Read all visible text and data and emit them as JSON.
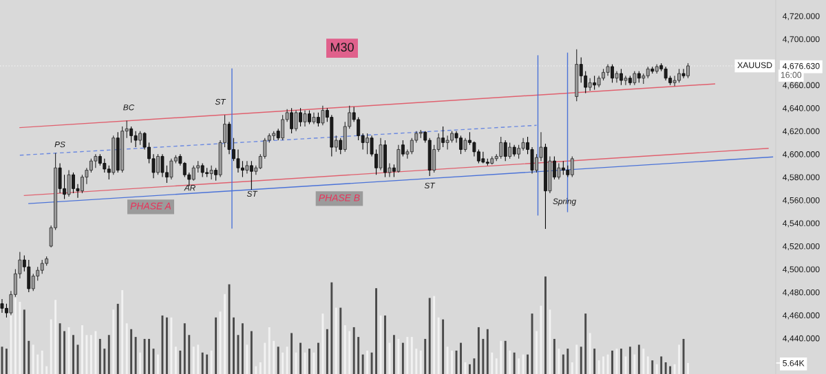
{
  "chart_data": {
    "type": "candlestick",
    "title": "M30",
    "categories": [
      null,
      null,
      null,
      null,
      null,
      null,
      null,
      null,
      null,
      null,
      null,
      null,
      null,
      null,
      null,
      null,
      null,
      null,
      null,
      null,
      null,
      null,
      null,
      null,
      null,
      null,
      null,
      null,
      null,
      null,
      null,
      null,
      null,
      null,
      null,
      null,
      null,
      null,
      null,
      null,
      null,
      null,
      null,
      null,
      null,
      null,
      null,
      null,
      null,
      null,
      null,
      null,
      null,
      null,
      null,
      null,
      null,
      null,
      null,
      null,
      null,
      null,
      null,
      null,
      null,
      null,
      null,
      null,
      null,
      null,
      null,
      null,
      null,
      null,
      null,
      null,
      null,
      null,
      null,
      null,
      null,
      null,
      null,
      null,
      null,
      null,
      null,
      null,
      null,
      null,
      null,
      null,
      null,
      null,
      null,
      null,
      null,
      null,
      null,
      null,
      null,
      null,
      null,
      null,
      null,
      null,
      null,
      null,
      null,
      null,
      null,
      null,
      null,
      null,
      null,
      null,
      null,
      null,
      null,
      null,
      null,
      null,
      null,
      null,
      null,
      null,
      null,
      null,
      null,
      null,
      null,
      null,
      null,
      null,
      null,
      null,
      null,
      null,
      null,
      null,
      null,
      null,
      null,
      null,
      null,
      null,
      null,
      null,
      null,
      null,
      null,
      null,
      null,
      null,
      null,
      null,
      null,
      null,
      null,
      null,
      null,
      null,
      null,
      null,
      null,
      null,
      null,
      null,
      null,
      null,
      null,
      null,
      null,
      null
    ],
    "ohlc": [
      [
        4470,
        4474,
        4462,
        4466
      ],
      [
        4466,
        4470,
        4458,
        4462
      ],
      [
        4462,
        4481,
        4460,
        4478
      ],
      [
        4478,
        4500,
        4476,
        4496
      ],
      [
        4496,
        4515,
        4492,
        4508
      ],
      [
        4508,
        4512,
        4498,
        4502
      ],
      [
        4502,
        4508,
        4480,
        4483
      ],
      [
        4483,
        4496,
        4481,
        4494
      ],
      [
        4494,
        4502,
        4490,
        4499
      ],
      [
        4499,
        4508,
        4496,
        4505
      ],
      [
        4505,
        4511,
        4503,
        4509
      ],
      [
        4520,
        4538,
        4519,
        4536
      ],
      [
        4536,
        4601,
        4534,
        4588
      ],
      [
        4588,
        4592,
        4566,
        4570
      ],
      [
        4570,
        4582,
        4561,
        4565
      ],
      [
        4565,
        4586,
        4563,
        4582
      ],
      [
        4582,
        4584,
        4566,
        4570
      ],
      [
        4570,
        4574,
        4562,
        4568
      ],
      [
        4568,
        4582,
        4566,
        4580
      ],
      [
        4580,
        4588,
        4574,
        4586
      ],
      [
        4586,
        4596,
        4584,
        4594
      ],
      [
        4594,
        4600,
        4588,
        4598
      ],
      [
        4598,
        4600,
        4590,
        4592
      ],
      [
        4592,
        4596,
        4584,
        4587
      ],
      [
        4587,
        4590,
        4578,
        4584
      ],
      [
        4584,
        4616,
        4582,
        4614
      ],
      [
        4614,
        4619,
        4584,
        4586
      ],
      [
        4586,
        4624,
        4584,
        4620
      ],
      [
        4620,
        4629,
        4614,
        4622
      ],
      [
        4622,
        4624,
        4610,
        4616
      ],
      [
        4616,
        4620,
        4606,
        4612
      ],
      [
        4612,
        4620,
        4608,
        4618
      ],
      [
        4618,
        4619,
        4604,
        4606
      ],
      [
        4606,
        4610,
        4592,
        4596
      ],
      [
        4596,
        4600,
        4579,
        4584
      ],
      [
        4584,
        4600,
        4582,
        4598
      ],
      [
        4598,
        4600,
        4580,
        4584
      ],
      [
        4584,
        4590,
        4575,
        4580
      ],
      [
        4580,
        4596,
        4578,
        4594
      ],
      [
        4594,
        4599,
        4592,
        4597
      ],
      [
        4598,
        4600,
        4590,
        4592
      ],
      [
        4592,
        4593,
        4580,
        4582
      ],
      [
        4582,
        4584,
        4572,
        4578
      ],
      [
        4578,
        4590,
        4577,
        4588
      ],
      [
        4588,
        4594,
        4584,
        4590
      ],
      [
        4590,
        4592,
        4580,
        4584
      ],
      [
        4584,
        4588,
        4580,
        4583
      ],
      [
        4583,
        4590,
        4578,
        4586
      ],
      [
        4586,
        4588,
        4577,
        4582
      ],
      [
        4582,
        4612,
        4580,
        4610
      ],
      [
        4610,
        4634,
        4606,
        4626
      ],
      [
        4626,
        4628,
        4600,
        4604
      ],
      [
        4604,
        4614,
        4594,
        4596
      ],
      [
        4596,
        4604,
        4584,
        4588
      ],
      [
        4588,
        4594,
        4580,
        4586
      ],
      [
        4586,
        4594,
        4583,
        4590
      ],
      [
        4590,
        4594,
        4569,
        4585
      ],
      [
        4585,
        4590,
        4582,
        4588
      ],
      [
        4588,
        4600,
        4587,
        4598
      ],
      [
        4598,
        4614,
        4596,
        4612
      ],
      [
        4612,
        4618,
        4610,
        4616
      ],
      [
        4616,
        4620,
        4612,
        4618
      ],
      [
        4620,
        4622,
        4612,
        4614
      ],
      [
        4614,
        4634,
        4612,
        4630
      ],
      [
        4630,
        4639,
        4628,
        4636
      ],
      [
        4636,
        4640,
        4618,
        4622
      ],
      [
        4622,
        4638,
        4620,
        4636
      ],
      [
        4636,
        4640,
        4624,
        4628
      ],
      [
        4628,
        4638,
        4624,
        4635
      ],
      [
        4635,
        4638,
        4626,
        4628
      ],
      [
        4628,
        4636,
        4626,
        4632
      ],
      [
        4632,
        4636,
        4624,
        4627
      ],
      [
        4627,
        4642,
        4625,
        4638
      ],
      [
        4638,
        4640,
        4628,
        4632
      ],
      [
        4632,
        4634,
        4598,
        4606
      ],
      [
        4606,
        4616,
        4602,
        4612
      ],
      [
        4612,
        4614,
        4600,
        4604
      ],
      [
        4604,
        4628,
        4602,
        4624
      ],
      [
        4624,
        4642,
        4622,
        4636
      ],
      [
        4636,
        4641,
        4628,
        4630
      ],
      [
        4630,
        4632,
        4612,
        4616
      ],
      [
        4616,
        4618,
        4604,
        4610
      ],
      [
        4610,
        4618,
        4600,
        4614
      ],
      [
        4614,
        4616,
        4598,
        4600
      ],
      [
        4600,
        4604,
        4582,
        4588
      ],
      [
        4588,
        4614,
        4586,
        4608
      ],
      [
        4608,
        4612,
        4580,
        4584
      ],
      [
        4584,
        4592,
        4580,
        4588
      ],
      [
        4588,
        4591,
        4580,
        4585
      ],
      [
        4585,
        4608,
        4584,
        4604
      ],
      [
        4608,
        4612,
        4598,
        4600
      ],
      [
        4600,
        4604,
        4596,
        4602
      ],
      [
        4602,
        4614,
        4600,
        4612
      ],
      [
        4612,
        4620,
        4610,
        4618
      ],
      [
        4618,
        4621,
        4614,
        4619
      ],
      [
        4619,
        4620,
        4610,
        4612
      ],
      [
        4612,
        4614,
        4581,
        4586
      ],
      [
        4586,
        4608,
        4584,
        4604
      ],
      [
        4604,
        4618,
        4602,
        4614
      ],
      [
        4614,
        4624,
        4606,
        4610
      ],
      [
        4610,
        4616,
        4604,
        4612
      ],
      [
        4612,
        4620,
        4610,
        4618
      ],
      [
        4618,
        4620,
        4610,
        4614
      ],
      [
        4614,
        4616,
        4600,
        4604
      ],
      [
        4604,
        4614,
        4602,
        4612
      ],
      [
        4612,
        4619,
        4608,
        4610
      ],
      [
        4610,
        4611,
        4598,
        4602
      ],
      [
        4602,
        4604,
        4592,
        4594
      ],
      [
        4596,
        4602,
        4592,
        4593
      ],
      [
        4593,
        4596,
        4590,
        4592
      ],
      [
        4592,
        4598,
        4591,
        4596
      ],
      [
        4596,
        4600,
        4594,
        4598
      ],
      [
        4598,
        4615,
        4596,
        4610
      ],
      [
        4610,
        4612,
        4594,
        4598
      ],
      [
        4598,
        4610,
        4596,
        4606
      ],
      [
        4606,
        4608,
        4598,
        4600
      ],
      [
        4600,
        4608,
        4596,
        4605
      ],
      [
        4605,
        4614,
        4603,
        4610
      ],
      [
        4610,
        4615,
        4600,
        4604
      ],
      [
        4604,
        4606,
        4583,
        4586
      ],
      [
        4586,
        4600,
        4584,
        4597
      ],
      [
        4597,
        4619,
        4594,
        4606
      ],
      [
        4606,
        4609,
        4535,
        4568
      ],
      [
        4568,
        4598,
        4566,
        4594
      ],
      [
        4594,
        4598,
        4578,
        4580
      ],
      [
        4580,
        4592,
        4578,
        4588
      ],
      [
        4588,
        4594,
        4582,
        4586
      ],
      [
        4586,
        4590,
        4580,
        4582
      ],
      [
        4582,
        4598,
        4580,
        4596
      ],
      [
        4650,
        4691,
        4646,
        4678
      ],
      [
        4678,
        4684,
        4662,
        4668
      ],
      [
        4668,
        4672,
        4653,
        4658
      ],
      [
        4658,
        4666,
        4655,
        4662
      ],
      [
        4662,
        4668,
        4656,
        4660
      ],
      [
        4660,
        4668,
        4658,
        4666
      ],
      [
        4666,
        4674,
        4664,
        4671
      ],
      [
        4671,
        4678,
        4668,
        4676
      ],
      [
        4676,
        4678,
        4662,
        4666
      ],
      [
        4666,
        4672,
        4662,
        4670
      ],
      [
        4670,
        4674,
        4660,
        4664
      ],
      [
        4664,
        4668,
        4660,
        4666
      ],
      [
        4666,
        4668,
        4660,
        4662
      ],
      [
        4662,
        4672,
        4660,
        4670
      ],
      [
        4670,
        4672,
        4662,
        4666
      ],
      [
        4666,
        4670,
        4661,
        4668
      ],
      [
        4668,
        4676,
        4666,
        4674
      ],
      [
        4674,
        4676,
        4670,
        4672
      ],
      [
        4672,
        4678,
        4670,
        4676
      ],
      [
        4677,
        4679,
        4672,
        4674
      ],
      [
        4674,
        4676,
        4664,
        4666
      ],
      [
        4666,
        4668,
        4660,
        4662
      ],
      [
        4662,
        4668,
        4659,
        4664
      ],
      [
        4664,
        4674,
        4662,
        4670
      ],
      [
        4670,
        4674,
        4666,
        4668
      ],
      [
        4668,
        4679,
        4666,
        4676.63
      ],
      null,
      null,
      null,
      null,
      null,
      null,
      null,
      null,
      null,
      null,
      null,
      null,
      null,
      null,
      null,
      null,
      null,
      null,
      null
    ],
    "colors": [
      "#1c1c1c",
      "#1c1c1c",
      "#9e9e9e",
      "#9e9e9e",
      "#9e9e9e",
      "#1c1c1c",
      "#1c1c1c",
      "#9e9e9e",
      "#9e9e9e",
      "#9e9e9e",
      "#9e9e9e",
      "#9e9e9e",
      "#9e9e9e",
      "#1c1c1c",
      "#1c1c1c",
      "#9e9e9e",
      "#1c1c1c",
      "#1c1c1c",
      "#9e9e9e",
      "#9e9e9e",
      "#9e9e9e",
      "#9e9e9e",
      "#1c1c1c",
      "#1c1c1c",
      "#1c1c1c",
      "#9e9e9e",
      "#1c1c1c",
      "#9e9e9e",
      "#9e9e9e",
      "#1c1c1c",
      "#1c1c1c",
      "#9e9e9e",
      "#1c1c1c",
      "#1c1c1c",
      "#1c1c1c",
      "#9e9e9e",
      "#1c1c1c",
      "#1c1c1c",
      "#9e9e9e",
      "#9e9e9e",
      "#1c1c1c",
      "#1c1c1c",
      "#1c1c1c",
      "#9e9e9e",
      "#9e9e9e",
      "#1c1c1c",
      "#1c1c1c",
      "#9e9e9e",
      "#1c1c1c",
      "#9e9e9e",
      "#9e9e9e",
      "#1c1c1c",
      "#1c1c1c",
      "#1c1c1c",
      "#1c1c1c",
      "#9e9e9e",
      "#1c1c1c",
      "#9e9e9e",
      "#9e9e9e",
      "#9e9e9e",
      "#9e9e9e",
      "#9e9e9e",
      "#1c1c1c",
      "#9e9e9e",
      "#9e9e9e",
      "#1c1c1c",
      "#9e9e9e",
      "#1c1c1c",
      "#9e9e9e",
      "#1c1c1c",
      "#9e9e9e",
      "#1c1c1c",
      "#9e9e9e",
      "#1c1c1c",
      "#1c1c1c",
      "#9e9e9e",
      "#1c1c1c",
      "#9e9e9e",
      "#9e9e9e",
      "#1c1c1c",
      "#1c1c1c",
      "#1c1c1c",
      "#9e9e9e",
      "#1c1c1c",
      "#1c1c1c",
      "#9e9e9e",
      "#1c1c1c",
      "#9e9e9e",
      "#1c1c1c",
      "#9e9e9e",
      "#1c1c1c",
      "#9e9e9e",
      "#9e9e9e",
      "#9e9e9e",
      "#9e9e9e",
      "#1c1c1c",
      "#1c1c1c",
      "#9e9e9e",
      "#9e9e9e",
      "#1c1c1c",
      "#9e9e9e",
      "#9e9e9e",
      "#1c1c1c",
      "#1c1c1c",
      "#9e9e9e",
      "#1c1c1c",
      "#1c1c1c",
      "#1c1c1c",
      "#1c1c1c",
      "#1c1c1c",
      "#9e9e9e",
      "#9e9e9e",
      "#9e9e9e",
      "#1c1c1c",
      "#9e9e9e",
      "#1c1c1c",
      "#9e9e9e",
      "#9e9e9e",
      "#1c1c1c",
      "#1c1c1c",
      "#9e9e9e",
      "#9e9e9e",
      "#1c1c1c",
      "#9e9e9e",
      "#1c1c1c",
      "#9e9e9e",
      "#1c1c1c",
      "#1c1c1c",
      "#9e9e9e",
      "#9e9e9e",
      "#1c1c1c",
      "#1c1c1c",
      "#9e9e9e",
      "#1c1c1c",
      "#9e9e9e",
      "#9e9e9e",
      "#9e9e9e",
      "#1c1c1c",
      "#9e9e9e",
      "#1c1c1c",
      "#9e9e9e",
      "#1c1c1c",
      "#9e9e9e",
      "#1c1c1c",
      "#9e9e9e",
      "#9e9e9e",
      "#1c1c1c",
      "#9e9e9e",
      "#1c1c1c",
      "#1c1c1c",
      "#1c1c1c",
      "#9e9e9e",
      "#9e9e9e",
      "#1c1c1c",
      "#9e9e9e",
      null,
      null,
      null,
      null,
      null,
      null,
      null,
      null,
      null,
      null,
      null,
      null,
      null,
      null,
      null,
      null,
      null,
      null,
      null
    ],
    "series": [
      {
        "type": "bar",
        "axis": "y2",
        "values": [
          14,
          13,
          31,
          39,
          37,
          33,
          17,
          15,
          10,
          12,
          4,
          28,
          38,
          26,
          22,
          24,
          20,
          15,
          25,
          20,
          20,
          22,
          18,
          13,
          20,
          33,
          36,
          43,
          26,
          23,
          19,
          11,
          18,
          18,
          13,
          10,
          30,
          29,
          29,
          14,
          12,
          26,
          20,
          14,
          15,
          11,
          10,
          12,
          29,
          32,
          41,
          46,
          29,
          20,
          26,
          15,
          22,
          4,
          6,
          16,
          24,
          17,
          14,
          11,
          14,
          21,
          11,
          16,
          11,
          13,
          11,
          16,
          31,
          23,
          47,
          34,
          34,
          25,
          22,
          24,
          19,
          10,
          12,
          11,
          44,
          30,
          30,
          16,
          20,
          18,
          16,
          19,
          19,
          13,
          12,
          18,
          39,
          40,
          29,
          28,
          14,
          12,
          12,
          16,
          6,
          5,
          8,
          24,
          18,
          23,
          11,
          8,
          17,
          17,
          12,
          11,
          8,
          10,
          10,
          31,
          22,
          35,
          50,
          33,
          18,
          13,
          10,
          13,
          6,
          15,
          14,
          31,
          21,
          13,
          7,
          9,
          10,
          12,
          13,
          13,
          9,
          14,
          10,
          15,
          13,
          9,
          7,
          5,
          9,
          6,
          4,
          5,
          15,
          18,
          5.64,
          null,
          null,
          null,
          null,
          null,
          null,
          null,
          null,
          null,
          null,
          null,
          null,
          null,
          null,
          null,
          null,
          null,
          null,
          null
        ],
        "colors": [
          "#4a4a4a",
          "#4a4a4a",
          "#f2f2f2",
          "#f2f2f2",
          "#f2f2f2",
          "#4a4a4a",
          "#4a4a4a",
          "#f2f2f2",
          "#f2f2f2",
          "#f2f2f2",
          "#f2f2f2",
          "#f2f2f2",
          "#f2f2f2",
          "#4a4a4a",
          "#4a4a4a",
          "#f2f2f2",
          "#4a4a4a",
          "#4a4a4a",
          "#f2f2f2",
          "#f2f2f2",
          "#f2f2f2",
          "#f2f2f2",
          "#4a4a4a",
          "#4a4a4a",
          "#4a4a4a",
          "#f2f2f2",
          "#4a4a4a",
          "#f2f2f2",
          "#f2f2f2",
          "#4a4a4a",
          "#4a4a4a",
          "#f2f2f2",
          "#4a4a4a",
          "#4a4a4a",
          "#4a4a4a",
          "#f2f2f2",
          "#4a4a4a",
          "#4a4a4a",
          "#f2f2f2",
          "#f2f2f2",
          "#4a4a4a",
          "#4a4a4a",
          "#4a4a4a",
          "#f2f2f2",
          "#f2f2f2",
          "#4a4a4a",
          "#4a4a4a",
          "#f2f2f2",
          "#4a4a4a",
          "#f2f2f2",
          "#f2f2f2",
          "#4a4a4a",
          "#4a4a4a",
          "#4a4a4a",
          "#4a4a4a",
          "#f2f2f2",
          "#4a4a4a",
          "#f2f2f2",
          "#f2f2f2",
          "#f2f2f2",
          "#f2f2f2",
          "#f2f2f2",
          "#4a4a4a",
          "#f2f2f2",
          "#f2f2f2",
          "#4a4a4a",
          "#f2f2f2",
          "#4a4a4a",
          "#f2f2f2",
          "#4a4a4a",
          "#f2f2f2",
          "#4a4a4a",
          "#f2f2f2",
          "#4a4a4a",
          "#4a4a4a",
          "#f2f2f2",
          "#4a4a4a",
          "#f2f2f2",
          "#f2f2f2",
          "#4a4a4a",
          "#4a4a4a",
          "#4a4a4a",
          "#f2f2f2",
          "#4a4a4a",
          "#4a4a4a",
          "#f2f2f2",
          "#4a4a4a",
          "#f2f2f2",
          "#4a4a4a",
          "#f2f2f2",
          "#4a4a4a",
          "#f2f2f2",
          "#f2f2f2",
          "#f2f2f2",
          "#f2f2f2",
          "#4a4a4a",
          "#4a4a4a",
          "#f2f2f2",
          "#f2f2f2",
          "#4a4a4a",
          "#f2f2f2",
          "#f2f2f2",
          "#4a4a4a",
          "#4a4a4a",
          "#f2f2f2",
          "#4a4a4a",
          "#4a4a4a",
          "#4a4a4a",
          "#4a4a4a",
          "#4a4a4a",
          "#f2f2f2",
          "#f2f2f2",
          "#f2f2f2",
          "#4a4a4a",
          "#f2f2f2",
          "#4a4a4a",
          "#f2f2f2",
          "#f2f2f2",
          "#4a4a4a",
          "#4a4a4a",
          "#f2f2f2",
          "#f2f2f2",
          "#4a4a4a",
          "#f2f2f2",
          "#4a4a4a",
          "#f2f2f2",
          "#4a4a4a",
          "#4a4a4a",
          "#f2f2f2",
          "#f2f2f2",
          "#4a4a4a",
          "#4a4a4a",
          "#f2f2f2",
          "#4a4a4a",
          "#f2f2f2",
          "#f2f2f2",
          "#f2f2f2",
          "#4a4a4a",
          "#f2f2f2",
          "#4a4a4a",
          "#f2f2f2",
          "#4a4a4a",
          "#f2f2f2",
          "#4a4a4a",
          "#f2f2f2",
          "#f2f2f2",
          "#4a4a4a",
          "#f2f2f2",
          "#4a4a4a",
          "#4a4a4a",
          "#4a4a4a",
          "#f2f2f2",
          "#f2f2f2",
          "#4a4a4a",
          "#f2f2f2",
          null,
          null,
          null,
          null,
          null,
          null,
          null,
          null,
          null,
          null,
          null,
          null,
          null,
          null,
          null,
          null,
          null,
          null,
          null
        ]
      },
      {
        "type": "line",
        "color": "#e0606e",
        "line_style": "solid",
        "values": [
          null,
          null,
          null,
          null,
          4623,
          null,
          null,
          null,
          null,
          null,
          null,
          null,
          null,
          null,
          null,
          null,
          null,
          null,
          null,
          null,
          null,
          null,
          null,
          null,
          null,
          null,
          null,
          null,
          null,
          null,
          null,
          null,
          null,
          null,
          null,
          null,
          null,
          null,
          null,
          null,
          null,
          null,
          null,
          null,
          null,
          null,
          null,
          null,
          null,
          null,
          null,
          null,
          null,
          null,
          null,
          null,
          null,
          null,
          null,
          null,
          null,
          null,
          null,
          null,
          null,
          null,
          null,
          null,
          null,
          null,
          null,
          null,
          null,
          null,
          null,
          null,
          null,
          null,
          null,
          null,
          null,
          null,
          null,
          null,
          null,
          null,
          null,
          null,
          null,
          null,
          null,
          null,
          null,
          null,
          null,
          null,
          null,
          null,
          null,
          null,
          null,
          null,
          null,
          null,
          null,
          null,
          null,
          null,
          null,
          null,
          null,
          null,
          null,
          null,
          null,
          null,
          null,
          null,
          null,
          null,
          null,
          null,
          null,
          null,
          null,
          null,
          null,
          null,
          null,
          null,
          null,
          null,
          null,
          null,
          null,
          null,
          null,
          null,
          null,
          null,
          null,
          null,
          null,
          null,
          null,
          null,
          null,
          null,
          null,
          null,
          null,
          null,
          null,
          null,
          null,
          null,
          null,
          null,
          null,
          null,
          4661,
          null,
          null,
          null,
          null,
          null,
          null,
          null,
          null,
          null,
          null,
          null,
          null,
          null
        ]
      },
      {
        "type": "line",
        "color": "#e0606e",
        "line_style": "solid",
        "values": [
          null,
          null,
          null,
          null,
          null,
          4564,
          null,
          null,
          null,
          null,
          null,
          null,
          null,
          null,
          null,
          null,
          null,
          null,
          null,
          null,
          null,
          null,
          null,
          null,
          null,
          null,
          null,
          null,
          null,
          null,
          null,
          null,
          null,
          null,
          null,
          null,
          null,
          null,
          null,
          null,
          null,
          null,
          null,
          null,
          null,
          null,
          null,
          null,
          null,
          null,
          null,
          null,
          null,
          null,
          null,
          null,
          null,
          null,
          null,
          null,
          null,
          null,
          null,
          null,
          null,
          null,
          null,
          null,
          null,
          null,
          null,
          null,
          null,
          null,
          null,
          null,
          null,
          null,
          null,
          null,
          null,
          null,
          null,
          null,
          null,
          null,
          null,
          null,
          null,
          null,
          null,
          null,
          null,
          null,
          null,
          null,
          null,
          null,
          null,
          null,
          null,
          null,
          null,
          null,
          null,
          null,
          null,
          null,
          null,
          null,
          null,
          null,
          null,
          null,
          null,
          null,
          null,
          null,
          null,
          null,
          null,
          null,
          null,
          null,
          null,
          null,
          null,
          null,
          null,
          null,
          null,
          null,
          null,
          null,
          null,
          null,
          null,
          null,
          null,
          null,
          null,
          null,
          null,
          null,
          null,
          null,
          null,
          null,
          null,
          null,
          null,
          null,
          null,
          null,
          null,
          null,
          null,
          null,
          null,
          null,
          null,
          null,
          null,
          null,
          null,
          null,
          null,
          null,
          null,
          null,
          null,
          null,
          4605,
          null
        ]
      },
      {
        "type": "line",
        "color": "#4a72d8",
        "line_style": "solid",
        "values": [
          null,
          null,
          null,
          null,
          null,
          null,
          4557,
          null,
          null,
          null,
          null,
          null,
          null,
          null,
          null,
          null,
          null,
          null,
          null,
          null,
          null,
          null,
          null,
          null,
          null,
          null,
          null,
          null,
          null,
          null,
          null,
          null,
          null,
          null,
          null,
          null,
          null,
          null,
          null,
          null,
          null,
          null,
          null,
          null,
          null,
          null,
          null,
          null,
          null,
          null,
          null,
          null,
          null,
          null,
          null,
          null,
          null,
          null,
          null,
          null,
          null,
          null,
          null,
          null,
          null,
          null,
          null,
          null,
          null,
          null,
          null,
          null,
          null,
          null,
          null,
          null,
          null,
          null,
          null,
          null,
          null,
          null,
          null,
          null,
          null,
          null,
          null,
          null,
          null,
          null,
          null,
          null,
          null,
          null,
          null,
          null,
          null,
          null,
          null,
          null,
          null,
          null,
          null,
          null,
          null,
          null,
          null,
          null,
          null,
          null,
          null,
          null,
          null,
          null,
          null,
          null,
          null,
          null,
          null,
          null,
          null,
          null,
          null,
          null,
          null,
          null,
          null,
          null,
          null,
          null,
          null,
          null,
          null,
          null,
          null,
          null,
          null,
          null,
          null,
          null,
          null,
          null,
          null,
          null,
          null,
          null,
          null,
          null,
          null,
          null,
          null,
          null,
          null,
          null,
          null,
          null,
          null,
          null,
          null,
          null,
          null,
          null,
          null,
          null,
          null,
          null,
          null,
          null,
          null,
          null,
          null,
          null,
          null,
          4597.5
        ]
      },
      {
        "type": "line",
        "color": "#6a88e0",
        "line_style": "dashed",
        "values": [
          null,
          null,
          null,
          null,
          4599,
          null,
          null,
          null,
          null,
          null,
          null,
          null,
          null,
          null,
          null,
          null,
          null,
          null,
          null,
          null,
          null,
          null,
          null,
          null,
          null,
          null,
          null,
          null,
          null,
          null,
          null,
          null,
          null,
          null,
          null,
          null,
          null,
          null,
          null,
          null,
          null,
          null,
          null,
          null,
          null,
          null,
          null,
          null,
          null,
          null,
          null,
          null,
          null,
          null,
          null,
          null,
          null,
          null,
          null,
          null,
          null,
          null,
          null,
          null,
          null,
          null,
          null,
          null,
          null,
          null,
          null,
          null,
          null,
          null,
          null,
          null,
          null,
          null,
          null,
          null,
          null,
          null,
          null,
          null,
          null,
          null,
          null,
          null,
          null,
          null,
          null,
          null,
          null,
          null,
          null,
          null,
          null,
          null,
          null,
          null,
          null,
          null,
          null,
          null,
          null,
          null,
          null,
          null,
          null,
          null,
          null,
          null,
          null,
          null,
          null,
          null,
          null,
          null,
          null,
          null,
          4625,
          null,
          null,
          null,
          null,
          null,
          null,
          null,
          null,
          null,
          null,
          null,
          null,
          null,
          null,
          null,
          null,
          null,
          null,
          null,
          null,
          null,
          null,
          null,
          null,
          null,
          null,
          null,
          null,
          null,
          null,
          null,
          null,
          null,
          null,
          null,
          null,
          null,
          null,
          null,
          null,
          null,
          null,
          null,
          null,
          null,
          null,
          null,
          null,
          null,
          null,
          null,
          null,
          null
        ]
      }
    ],
    "ylim": [
      4408.9,
      4733.9
    ],
    "yticks": [
      {
        "value": 4440,
        "label": "4,440.000"
      },
      {
        "value": 4460,
        "label": "4,460.000"
      },
      {
        "value": 4480,
        "label": "4,480.000"
      },
      {
        "value": 4500,
        "label": "4,500.000"
      },
      {
        "value": 4520,
        "label": "4,520.000"
      },
      {
        "value": 4540,
        "label": "4,540.000"
      },
      {
        "value": 4560,
        "label": "4,560.000"
      },
      {
        "value": 4580,
        "label": "4,580.000"
      },
      {
        "value": 4600,
        "label": "4,600.000"
      },
      {
        "value": 4620,
        "label": "4,620.000"
      },
      {
        "value": 4640,
        "label": "4,640.000"
      },
      {
        "value": 4660,
        "label": "4,660.000"
      },
      {
        "value": 4676.63,
        "label": "4,676.630"
      },
      {
        "value": 4700,
        "label": "4,700.000"
      },
      {
        "value": 4720,
        "label": "4,720.000"
      }
    ],
    "y2lim": [
      0,
      191.8
    ],
    "y2ticks": [
      {
        "value": 5.64,
        "label": "5.64K"
      }
    ],
    "ref_lines": [
      {
        "axis": "y",
        "value": 4676.63,
        "label": "XAUUSD",
        "color": "#f2f2f2",
        "line_style": "dotted"
      }
    ],
    "annotations": [
      "PS",
      "BC",
      "AR",
      "ST",
      "ST",
      "PHASE A",
      "PHASE B",
      "ST",
      "Spring",
      "16:00"
    ]
  }
}
